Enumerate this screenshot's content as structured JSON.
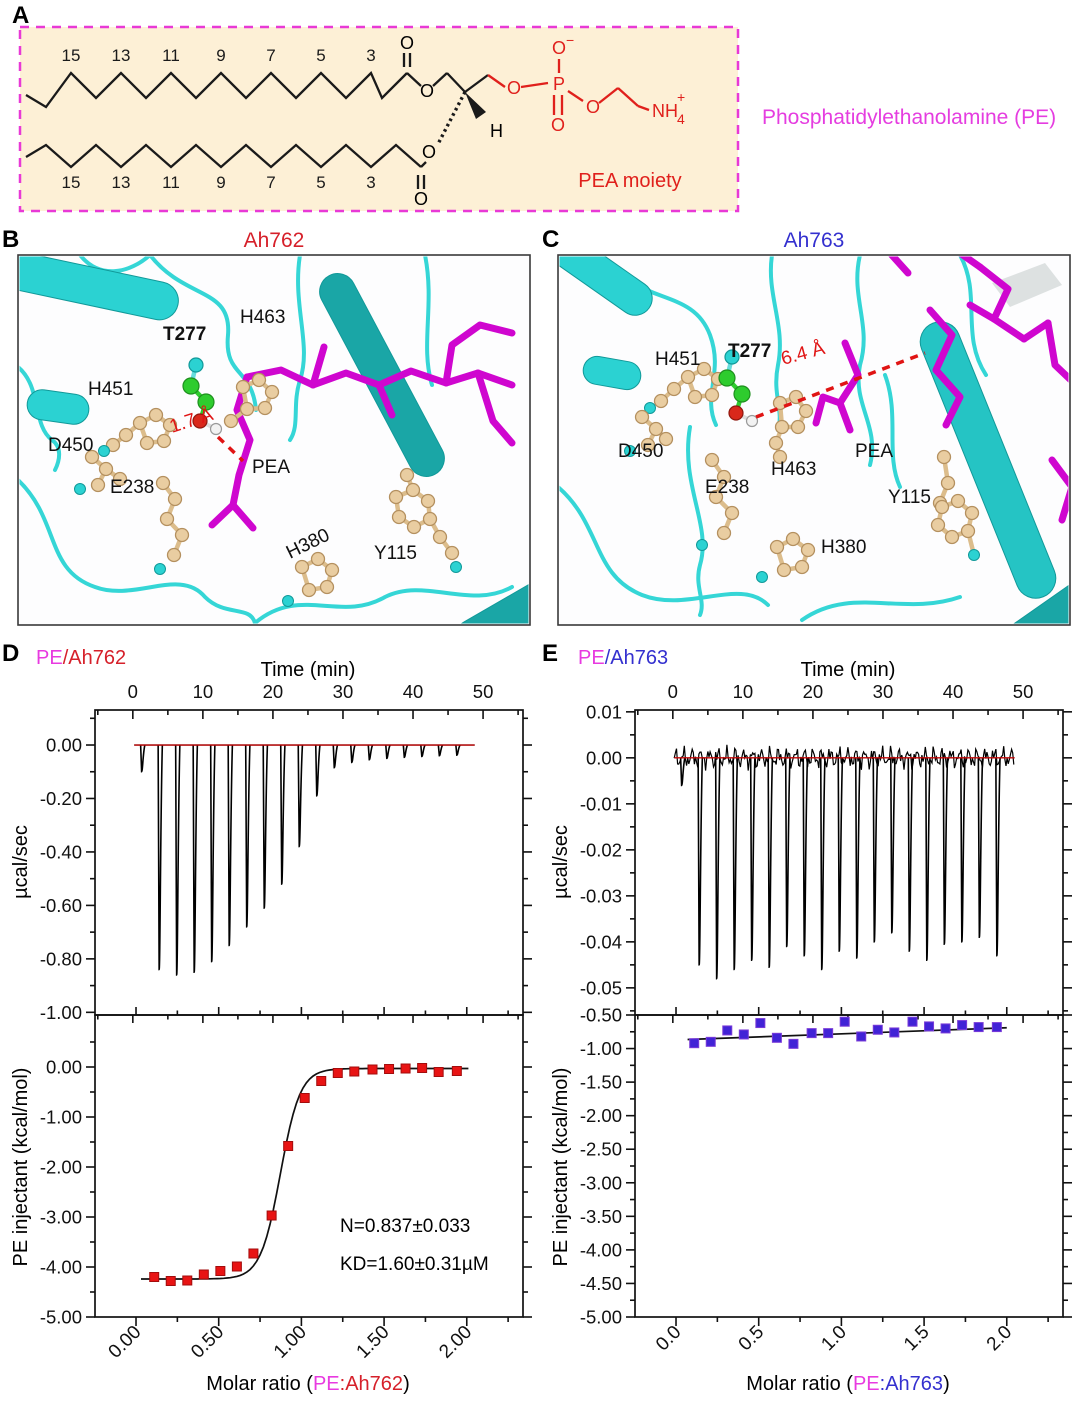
{
  "panels": {
    "A": {
      "label": "A",
      "name": "Phosphatidylethanolamine (PE)",
      "moiety": "PEA moiety",
      "chain_numbers": [
        "15",
        "13",
        "11",
        "9",
        "7",
        "5",
        "3"
      ],
      "atoms": {
        "O": "O",
        "P": "P",
        "H": "H",
        "NH": "NH",
        "four": "4",
        "plus": "+",
        "minus": "−"
      },
      "colors": {
        "box_bg": "#fdf0d6",
        "box_border": "#e839d6",
        "head_red": "#e0201c",
        "title_magenta": "#e53de0"
      }
    },
    "B": {
      "label": "B",
      "title": "Ah762",
      "title_color": "#d6202a",
      "ligand": "PEA",
      "distance": "1.7 Å",
      "residues": {
        "H451": "H451",
        "T277": "T277",
        "H463": "H463",
        "D450": "D450",
        "E238": "E238",
        "H380": "H380",
        "Y115": "Y115"
      }
    },
    "C": {
      "label": "C",
      "title": "Ah763",
      "title_color": "#3430cf",
      "ligand": "PEA",
      "distance": "6.4 Å",
      "residues": {
        "H451": "H451",
        "T277": "T277",
        "H463": "H463",
        "D450": "D450",
        "E238": "E238",
        "H380": "H380",
        "Y115": "Y115"
      }
    },
    "D": {
      "label": "D",
      "header": {
        "pe": "PE",
        "sep": "/",
        "protein": "Ah762"
      },
      "top_xlabel": "Time (min)",
      "top_ylabel": "µcal/sec",
      "bottom_ylabel": "PE injectant (kcal/mol)",
      "caption": {
        "prefix": "Molar ratio (",
        "pe": "PE",
        "colon": ":",
        "protein": "Ah762",
        "suffix": ")"
      },
      "fit_n": "N=0.837±0.033",
      "fit_kd": "KD=1.60±0.31µM"
    },
    "E": {
      "label": "E",
      "header": {
        "pe": "PE",
        "sep": "/",
        "protein": "Ah763"
      },
      "top_xlabel": "Time (min)",
      "top_ylabel": "µcal/sec",
      "bottom_ylabel": "PE injectant (kcal/mol)",
      "caption": {
        "prefix": "Molar ratio (",
        "pe": "PE",
        "colon": ":",
        "protein": "Ah763",
        "suffix": ")"
      }
    }
  },
  "chart_data": [
    {
      "id": "D_thermogram",
      "type": "line",
      "panel": "D",
      "xlabel": "Time (min)",
      "ylabel": "µcal/sec",
      "xlim": [
        -5.4,
        55.7
      ],
      "ylim": [
        0.131,
        -1.01
      ],
      "x_ticks": [
        0,
        10,
        20,
        30,
        40,
        50
      ],
      "x_tick_labels": [
        "0",
        "10",
        "20",
        "30",
        "40",
        "50"
      ],
      "x_minor": [
        -5,
        5,
        15,
        25,
        35,
        45,
        55
      ],
      "y_ticks": [
        0,
        -0.2,
        -0.4,
        -0.6,
        -0.8,
        -1.0
      ],
      "y_tick_labels": [
        "0.00",
        "-0.20",
        "-0.40",
        "-0.60",
        "-0.80",
        "-1.00"
      ],
      "y_minor": [
        0.1,
        -0.1,
        -0.3,
        -0.5,
        -0.7,
        -0.9
      ],
      "baseline": 0,
      "baseline_color": "#c00505",
      "noise": false,
      "injection_times": [
        1.2,
        3.7,
        6.2,
        8.7,
        11.2,
        13.7,
        16.2,
        18.7,
        21.2,
        23.7,
        26.2,
        28.7,
        31.2,
        33.7,
        36.2,
        38.7,
        41.2,
        43.7,
        46.2
      ],
      "injection_depths": [
        -0.1,
        -0.84,
        -0.86,
        -0.85,
        -0.81,
        -0.75,
        -0.68,
        -0.61,
        -0.52,
        -0.38,
        -0.19,
        -0.085,
        -0.065,
        -0.055,
        -0.05,
        -0.046,
        -0.043,
        -0.04,
        -0.038
      ]
    },
    {
      "id": "D_binding",
      "type": "scatter",
      "panel": "D",
      "xlabel": "Molar ratio (PE:Ah762)",
      "ylabel": "PE injectant (kcal/mol)",
      "xlim": [
        -0.248,
        2.34
      ],
      "ylim": [
        1.04,
        -5.0
      ],
      "x_ticks": [
        0,
        0.5,
        1.0,
        1.5,
        2.0
      ],
      "x_tick_labels": [
        "0.00",
        "0.50",
        "1.00",
        "1.50",
        "2.00"
      ],
      "x_minor": [
        0.25,
        0.75,
        1.25,
        1.75,
        2.25
      ],
      "y_ticks": [
        0,
        -1,
        -2,
        -3,
        -4,
        -5
      ],
      "y_tick_labels": [
        "0.00",
        "-1.00",
        "-2.00",
        "-3.00",
        "-4.00",
        "-5.00"
      ],
      "y_minor": [
        0.5,
        -0.5,
        -1.5,
        -2.5,
        -3.5,
        -4.5
      ],
      "marker": "square",
      "marker_color": "#e81414",
      "points_x": [
        0.11,
        0.21,
        0.31,
        0.41,
        0.51,
        0.61,
        0.71,
        0.82,
        0.92,
        1.02,
        1.12,
        1.22,
        1.32,
        1.43,
        1.53,
        1.63,
        1.73,
        1.83,
        1.94
      ],
      "points_y": [
        -4.2,
        -4.28,
        -4.27,
        -4.15,
        -4.08,
        -3.99,
        -3.73,
        -2.97,
        -1.58,
        -0.62,
        -0.28,
        -0.12,
        -0.09,
        -0.05,
        -0.04,
        -0.03,
        -0.02,
        -0.1,
        -0.08
      ],
      "fit": {
        "type": "sigmoid",
        "bottom": -4.24,
        "top": -0.03,
        "x0": 0.873,
        "k": 0.06
      },
      "annotations": [
        "N=0.837±0.033",
        "KD=1.60±0.31µM"
      ]
    },
    {
      "id": "E_thermogram",
      "type": "line",
      "panel": "E",
      "xlabel": "Time (min)",
      "ylabel": "µcal/sec",
      "xlim": [
        -5.4,
        55.7
      ],
      "ylim": [
        0.0104,
        -0.0559
      ],
      "x_ticks": [
        0,
        10,
        20,
        30,
        40,
        50
      ],
      "x_tick_labels": [
        "0",
        "10",
        "20",
        "30",
        "40",
        "50"
      ],
      "x_minor": [
        -5,
        5,
        15,
        25,
        35,
        45,
        55
      ],
      "y_ticks": [
        0.01,
        0,
        -0.01,
        -0.02,
        -0.03,
        -0.04,
        -0.05
      ],
      "y_tick_labels": [
        "0.01",
        "0.00",
        "-0.01",
        "-0.02",
        "-0.03",
        "-0.04",
        "-0.05"
      ],
      "y_minor": [
        0.005,
        -0.005,
        -0.015,
        -0.025,
        -0.035,
        -0.045,
        -0.055
      ],
      "baseline": 0,
      "baseline_color": "#c00505",
      "noise": true,
      "injection_times": [
        1.2,
        3.7,
        6.2,
        8.7,
        11.2,
        13.7,
        16.2,
        18.7,
        21.2,
        23.7,
        26.2,
        28.7,
        31.2,
        33.7,
        36.2,
        38.7,
        41.2,
        43.7,
        46.2
      ],
      "injection_depths": [
        -0.006,
        -0.045,
        -0.048,
        -0.046,
        -0.044,
        -0.0455,
        -0.041,
        -0.043,
        -0.046,
        -0.042,
        -0.0435,
        -0.04,
        -0.038,
        -0.042,
        -0.044,
        -0.0405,
        -0.04,
        -0.039,
        -0.043
      ]
    },
    {
      "id": "E_binding",
      "type": "scatter",
      "panel": "E",
      "xlabel": "Molar ratio (PE:Ah763)",
      "ylabel": "PE injectant (kcal/mol)",
      "xlim": [
        -0.248,
        2.34
      ],
      "ylim": [
        -0.5,
        -5.0
      ],
      "x_ticks": [
        0,
        0.5,
        1.0,
        1.5,
        2.0
      ],
      "x_tick_labels": [
        "0.0",
        "0.5",
        "1.0",
        "1.5",
        "2.0"
      ],
      "x_minor": [
        0.25,
        0.75,
        1.25,
        1.75,
        2.25
      ],
      "y_ticks": [
        -0.5,
        -1,
        -1.5,
        -2,
        -2.5,
        -3,
        -3.5,
        -4,
        -4.5,
        -5
      ],
      "y_tick_labels": [
        "-0.50",
        "-1.00",
        "-1.50",
        "-2.00",
        "-2.50",
        "-3.00",
        "-3.50",
        "-4.00",
        "-4.50",
        "-5.00"
      ],
      "y_minor": [
        -0.75,
        -1.25,
        -1.75,
        -2.25,
        -2.75,
        -3.25,
        -3.75,
        -4.25,
        -4.75
      ],
      "marker": "square",
      "marker_color": "#4123d6",
      "points_x": [
        0.11,
        0.21,
        0.31,
        0.41,
        0.51,
        0.61,
        0.71,
        0.82,
        0.92,
        1.02,
        1.12,
        1.22,
        1.32,
        1.43,
        1.53,
        1.63,
        1.73,
        1.83,
        1.94
      ],
      "points_y": [
        -0.92,
        -0.9,
        -0.73,
        -0.79,
        -0.62,
        -0.84,
        -0.93,
        -0.77,
        -0.77,
        -0.6,
        -0.82,
        -0.72,
        -0.76,
        -0.6,
        -0.67,
        -0.7,
        -0.65,
        -0.68,
        -0.68
      ],
      "fit": {
        "type": "line",
        "x1": 0.07,
        "y1": -0.865,
        "x2": 2.0,
        "y2": -0.69
      }
    }
  ]
}
